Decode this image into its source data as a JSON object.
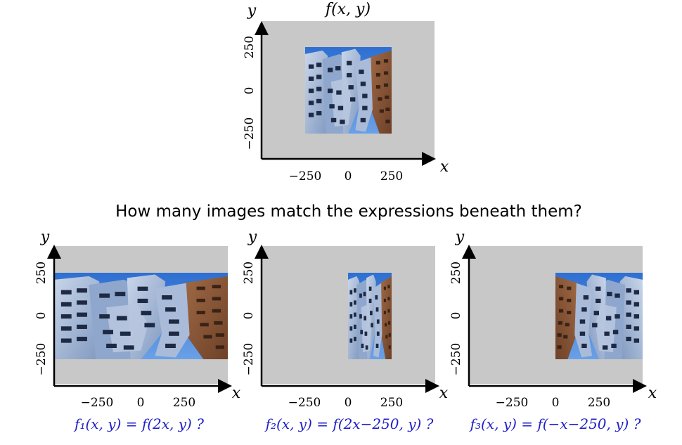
{
  "top_panel": {
    "title": "f(x, y)",
    "axis_x_label": "x",
    "axis_y_label": "y",
    "x_ticks": [
      "−250",
      "0",
      "250"
    ],
    "y_ticks": [
      "250",
      "0",
      "−250"
    ]
  },
  "question": "How many images match the expressions beneath them?",
  "panels": [
    {
      "axis_x_label": "x",
      "axis_y_label": "y",
      "x_ticks": [
        "−250",
        "0",
        "250"
      ],
      "y_ticks": [
        "250",
        "0",
        "−250"
      ],
      "expression": "f₁(x, y) = f(2x, y) ?"
    },
    {
      "axis_x_label": "x",
      "axis_y_label": "y",
      "x_ticks": [
        "−250",
        "0",
        "250"
      ],
      "y_ticks": [
        "250",
        "0",
        "−250"
      ],
      "expression": "f₂(x, y) = f(2x−250, y) ?"
    },
    {
      "axis_x_label": "x",
      "axis_y_label": "y",
      "x_ticks": [
        "−250",
        "0",
        "250"
      ],
      "y_ticks": [
        "250",
        "0",
        "−250"
      ],
      "expression": "f₃(x, y) = f(−x−250, y) ?"
    }
  ],
  "colors": {
    "background_region": "#c8c8c8",
    "sky": "#3f7fd6",
    "building_steel": "#9fb2cf",
    "building_brown": "#8a5a3c",
    "expression_text": "#1f1fc8"
  }
}
